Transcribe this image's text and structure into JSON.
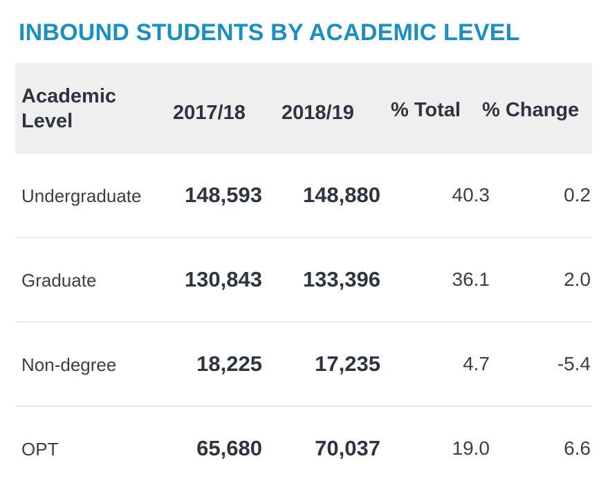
{
  "title": "INBOUND STUDENTS BY ACADEMIC LEVEL",
  "columns": {
    "level": "Academic Level",
    "y1": "2017/18",
    "y2": "2018/19",
    "total": "% Total",
    "change": "% Change"
  },
  "rows": [
    {
      "level": "Undergraduate",
      "y1": "148,593",
      "y2": "148,880",
      "total": "40.3",
      "change": "0.2"
    },
    {
      "level": "Graduate",
      "y1": "130,843",
      "y2": "133,396",
      "total": "36.1",
      "change": "2.0"
    },
    {
      "level": "Non-degree",
      "y1": "18,225",
      "y2": "17,235",
      "total": "4.7",
      "change": "-5.4"
    },
    {
      "level": "OPT",
      "y1": "65,680",
      "y2": "70,037",
      "total": "19.0",
      "change": "6.6"
    }
  ],
  "colors": {
    "title": "#1b8fc2",
    "header_bg": "#efefef"
  }
}
